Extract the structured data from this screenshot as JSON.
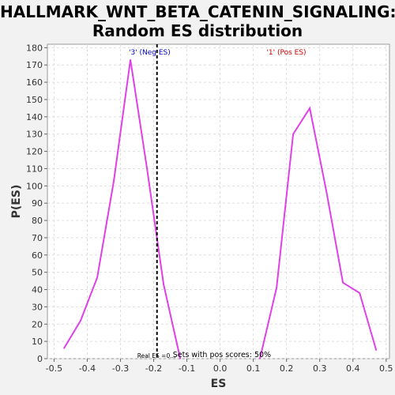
{
  "chart_data": {
    "type": "line",
    "title": "HALLMARK_WNT_BETA_CATENIN_SIGNALING:",
    "subtitle": "Random ES distribution",
    "xlabel": "ES",
    "ylabel": "P(ES)",
    "xlim": [
      -0.52,
      0.51
    ],
    "ylim": [
      0,
      182
    ],
    "xticks": [
      "-0.5",
      "-0.4",
      "-0.3",
      "-0.2",
      "-0.1",
      "0.0",
      "0.1",
      "0.2",
      "0.3",
      "0.4",
      "0.5"
    ],
    "yticks": [
      "0",
      "10",
      "20",
      "30",
      "40",
      "50",
      "60",
      "70",
      "80",
      "90",
      "100",
      "110",
      "120",
      "130",
      "140",
      "150",
      "160",
      "170",
      "180"
    ],
    "grid": true,
    "series": [
      {
        "color": "#e040e8",
        "segments": [
          {
            "x": [
              -0.47,
              -0.42,
              -0.37,
              -0.32,
              -0.27,
              -0.22,
              -0.17,
              -0.12
            ],
            "y": [
              6,
              22,
              47,
              103,
              173,
              110,
              43,
              0
            ]
          },
          {
            "x": [
              0.12,
              0.17,
              0.22,
              0.27,
              0.32,
              0.37,
              0.42,
              0.47
            ],
            "y": [
              0,
              41,
              130,
              145,
              97,
              44,
              38,
              5
            ]
          }
        ]
      }
    ],
    "vline": {
      "x": -0.19,
      "label": "Real ES =0..."
    },
    "annotations": {
      "neg_label": "'3' (Neg ES)",
      "pos_label": "'1' (Pos ES)",
      "neg_color": "#0000cc",
      "pos_color": "#cc0000",
      "sets_text": "Sets with pos scores: 50%"
    }
  }
}
